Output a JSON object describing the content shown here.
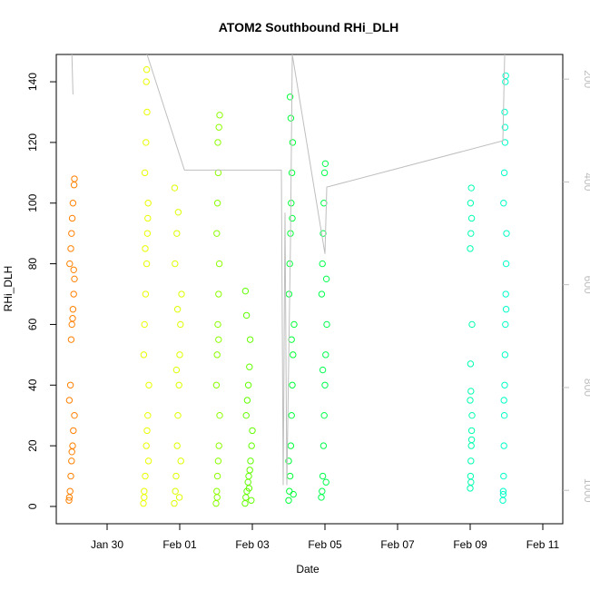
{
  "chart_data": {
    "type": "scatter",
    "title": "ATOM2 Southbound RHi_DLH",
    "xlabel": "Date",
    "ylabel": "RHi_DLH",
    "xlim": [
      28.6,
      42.55
    ],
    "ylim": [
      -5.7,
      149
    ],
    "y2lim": [
      1065,
      152
    ],
    "xticks": [
      {
        "value": 30,
        "label": "Jan 30"
      },
      {
        "value": 32,
        "label": "Feb 01"
      },
      {
        "value": 34,
        "label": "Feb 03"
      },
      {
        "value": 36,
        "label": "Feb 05"
      },
      {
        "value": 38,
        "label": "Feb 07"
      },
      {
        "value": 40,
        "label": "Feb 09"
      },
      {
        "value": 42,
        "label": "Feb 11"
      }
    ],
    "yticks": [
      0,
      20,
      40,
      60,
      80,
      100,
      120,
      140
    ],
    "y2ticks": [
      200,
      400,
      600,
      800,
      1000
    ],
    "y2color": "#bebebe",
    "series": [
      {
        "color": "#ff8000",
        "x": [
          28.95,
          28.98,
          29.0,
          29.02,
          29.05,
          29.07,
          29.1,
          28.96,
          28.99,
          29.01,
          29.03,
          29.06,
          29.08,
          29.1,
          28.97,
          29.0,
          29.02,
          29.04,
          29.06,
          29.09,
          29.1,
          28.96,
          29.03,
          29.05,
          29.08
        ],
        "values": [
          2,
          5,
          10,
          15,
          20,
          25,
          30,
          35,
          40,
          55,
          60,
          65,
          70,
          75,
          80,
          85,
          90,
          95,
          100,
          106,
          108,
          3,
          18,
          62,
          78
        ]
      },
      {
        "color": "#eaff00",
        "x": [
          31.0,
          31.02,
          31.05,
          31.08,
          31.1,
          31.12,
          31.15,
          31.01,
          31.03,
          31.06,
          31.09,
          31.11,
          31.13,
          31.04,
          31.07,
          31.1,
          31.08,
          31.09,
          31.02,
          31.14,
          31.05,
          31.12
        ],
        "values": [
          1,
          5,
          10,
          20,
          25,
          30,
          40,
          50,
          60,
          70,
          80,
          90,
          100,
          110,
          120,
          130,
          140,
          144,
          3,
          15,
          85,
          95
        ]
      },
      {
        "color": "#dfff00",
        "x": [
          31.85,
          31.88,
          31.9,
          31.93,
          31.95,
          31.98,
          32.0,
          32.02,
          32.05,
          31.87,
          31.92,
          31.96,
          31.86,
          31.99,
          32.03,
          31.91,
          31.94
        ],
        "values": [
          1,
          5,
          10,
          20,
          30,
          40,
          50,
          60,
          70,
          80,
          90,
          97,
          105,
          3,
          15,
          45,
          65
        ]
      },
      {
        "color": "#8cff00",
        "x": [
          33.0,
          33.02,
          33.04,
          33.06,
          33.08,
          33.1,
          33.01,
          33.03,
          33.05,
          33.07,
          33.09,
          33.02,
          33.04,
          33.06,
          33.05,
          33.08,
          33.1,
          33.03,
          33.07
        ],
        "values": [
          1,
          5,
          10,
          15,
          20,
          30,
          40,
          50,
          60,
          70,
          80,
          90,
          100,
          110,
          120,
          125,
          129,
          3,
          55
        ]
      },
      {
        "color": "#62ff00",
        "x": [
          33.8,
          33.82,
          33.85,
          33.88,
          33.9,
          33.93,
          33.95,
          33.98,
          34.0,
          33.83,
          33.86,
          33.89,
          33.92,
          33.94,
          33.84,
          33.81,
          33.97,
          33.91
        ],
        "values": [
          1,
          3,
          5,
          8,
          10,
          12,
          15,
          20,
          25,
          30,
          35,
          40,
          46,
          55,
          63,
          71,
          2,
          6
        ]
      },
      {
        "color": "#00ff38",
        "x": [
          35.0,
          35.02,
          35.04,
          35.06,
          35.08,
          35.1,
          35.12,
          35.15,
          35.01,
          35.03,
          35.05,
          35.07,
          35.09,
          35.11,
          35.06,
          35.04,
          35.13,
          35.0,
          35.08,
          35.1
        ],
        "values": [
          2,
          5,
          10,
          20,
          30,
          40,
          50,
          60,
          70,
          80,
          90,
          100,
          110,
          120,
          128,
          135,
          4,
          15,
          55,
          95
        ]
      },
      {
        "color": "#00ff4c",
        "x": [
          35.9,
          35.92,
          35.94,
          35.96,
          35.98,
          36.0,
          36.02,
          36.05,
          35.91,
          35.93,
          35.95,
          35.97,
          35.99,
          36.01,
          36.03,
          35.94,
          36.04
        ],
        "values": [
          3,
          5,
          10,
          20,
          30,
          40,
          50,
          60,
          70,
          80,
          90,
          100,
          110,
          113,
          8,
          45,
          75
        ]
      },
      {
        "color": "#00ffb0",
        "x": [
          40.0,
          40.01,
          40.02,
          40.03,
          40.04,
          40.05,
          40.0,
          40.02,
          40.01,
          40.05,
          40.0,
          40.02,
          40.04,
          40.01,
          40.03,
          40.02,
          40.04
        ],
        "values": [
          6,
          10,
          15,
          20,
          25,
          30,
          35,
          38,
          47,
          60,
          85,
          90,
          95,
          100,
          105,
          8,
          22
        ]
      },
      {
        "color": "#00ffc8",
        "x": [
          40.9,
          40.91,
          40.92,
          40.93,
          40.94,
          40.95,
          40.96,
          40.97,
          40.98,
          40.99,
          41.0,
          40.92,
          40.94,
          40.96,
          40.95,
          40.97,
          40.98,
          40.91,
          40.93,
          40.99,
          40.96
        ],
        "values": [
          2,
          5,
          10,
          20,
          30,
          40,
          50,
          60,
          70,
          80,
          90,
          100,
          110,
          120,
          130,
          140,
          142,
          4,
          35,
          65,
          125
        ]
      },
      {
        "type": "line",
        "axis": "y2",
        "color": "#bebebe",
        "x": [
          29.03,
          29.06,
          31.05,
          31.1,
          32.13,
          34.8,
          34.85,
          34.9,
          34.95,
          35.05,
          35.1,
          36.0,
          36.05,
          40.9,
          40.95
        ],
        "values": [
          152,
          230,
          null,
          152,
          377,
          377,
          990,
          460,
          990,
          520,
          152,
          540,
          410,
          320,
          152
        ]
      }
    ]
  }
}
